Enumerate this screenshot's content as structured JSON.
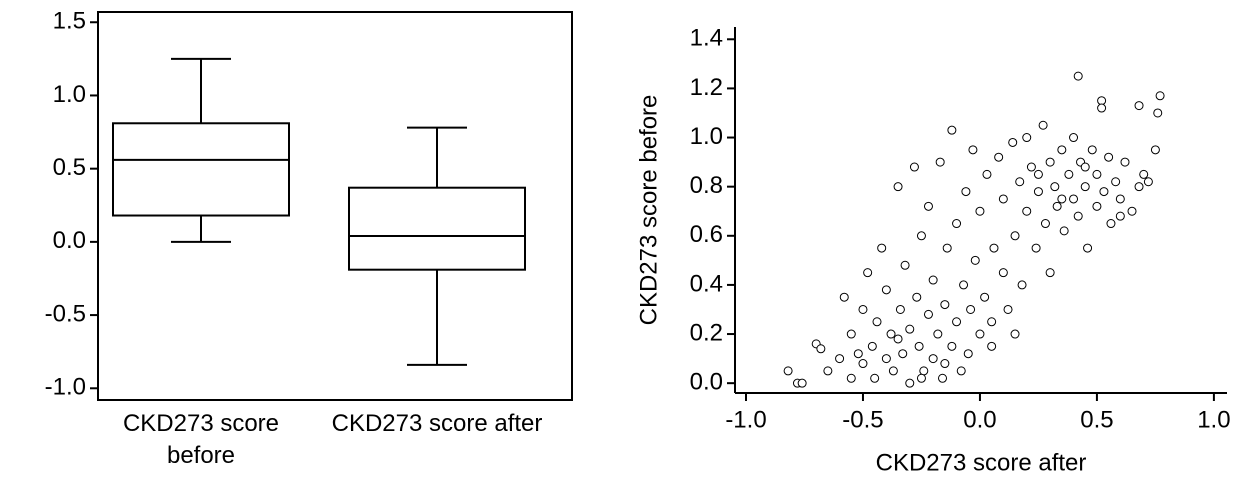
{
  "chart_data": [
    {
      "type": "box",
      "categories": [
        "CKD273 score before",
        "CKD273 score after"
      ],
      "whisker_low": [
        0.0,
        -0.84
      ],
      "q1": [
        0.18,
        -0.19
      ],
      "median": [
        0.56,
        0.04
      ],
      "q3": [
        0.81,
        0.37
      ],
      "whisker_high": [
        1.25,
        0.78
      ],
      "color": "#000000",
      "ylim": [
        -1.08,
        1.57
      ],
      "yticks": [
        {
          "value": -1,
          "label": "-1.0"
        },
        -0.5,
        {
          "value": 0,
          "label": "0.0"
        },
        0.5,
        {
          "value": 1,
          "label": "1.0"
        },
        1.5
      ]
    },
    {
      "type": "scatter",
      "xlabel": "CKD273 score after",
      "ylabel": "CKD273 score before",
      "x": [
        -0.82,
        -0.78,
        -0.76,
        -0.7,
        -0.68,
        -0.65,
        -0.6,
        -0.58,
        -0.55,
        -0.55,
        -0.52,
        -0.5,
        -0.5,
        -0.48,
        -0.46,
        -0.45,
        -0.44,
        -0.42,
        -0.4,
        -0.4,
        -0.38,
        -0.37,
        -0.35,
        -0.34,
        -0.33,
        -0.32,
        -0.3,
        -0.3,
        -0.28,
        -0.27,
        -0.26,
        -0.25,
        -0.24,
        -0.22,
        -0.22,
        -0.2,
        -0.2,
        -0.18,
        -0.17,
        -0.16,
        -0.15,
        -0.14,
        -0.12,
        -0.12,
        -0.1,
        -0.1,
        -0.08,
        -0.07,
        -0.06,
        -0.05,
        -0.04,
        -0.03,
        -0.02,
        0.0,
        0.0,
        0.02,
        0.03,
        0.05,
        0.06,
        0.08,
        0.1,
        0.1,
        0.12,
        0.14,
        0.15,
        0.17,
        0.18,
        0.2,
        0.2,
        0.22,
        0.24,
        0.25,
        0.27,
        0.28,
        0.3,
        0.3,
        0.32,
        0.33,
        0.35,
        0.36,
        0.38,
        0.4,
        0.4,
        0.42,
        0.43,
        0.45,
        0.46,
        0.48,
        0.5,
        0.5,
        0.52,
        0.53,
        0.55,
        0.56,
        0.58,
        0.6,
        0.62,
        0.65,
        0.68,
        0.7,
        0.72,
        0.75,
        0.77,
        0.42,
        0.52,
        -0.35,
        -0.15,
        0.05,
        -0.25,
        0.15,
        0.76,
        0.68,
        0.6,
        0.35,
        0.25,
        0.45
      ],
      "values": [
        0.05,
        0.0,
        0.0,
        0.16,
        0.14,
        0.05,
        0.1,
        0.35,
        0.2,
        0.02,
        0.12,
        0.08,
        0.3,
        0.45,
        0.15,
        0.02,
        0.25,
        0.55,
        0.1,
        0.38,
        0.2,
        0.05,
        0.8,
        0.3,
        0.12,
        0.48,
        0.22,
        0.0,
        0.88,
        0.35,
        0.15,
        0.6,
        0.05,
        0.28,
        0.72,
        0.1,
        0.42,
        0.2,
        0.9,
        0.02,
        0.32,
        0.55,
        0.15,
        1.03,
        0.25,
        0.65,
        0.05,
        0.4,
        0.78,
        0.12,
        0.3,
        0.95,
        0.5,
        0.2,
        0.7,
        0.35,
        0.85,
        0.15,
        0.55,
        0.92,
        0.45,
        0.75,
        0.3,
        0.98,
        0.6,
        0.82,
        0.4,
        0.7,
        1.0,
        0.88,
        0.55,
        0.78,
        1.05,
        0.65,
        0.9,
        0.45,
        0.8,
        0.72,
        0.95,
        0.62,
        0.85,
        0.75,
        1.0,
        0.68,
        0.9,
        0.8,
        0.55,
        0.95,
        0.72,
        0.85,
        1.15,
        0.78,
        0.92,
        0.65,
        0.82,
        0.75,
        0.9,
        0.7,
        0.8,
        0.85,
        0.82,
        0.95,
        1.17,
        1.25,
        1.12,
        0.18,
        0.08,
        0.25,
        0.02,
        0.2,
        1.1,
        1.13,
        0.68,
        0.75,
        0.85,
        0.88
      ],
      "color": "#000000",
      "xlim": [
        -1.047,
        1.056
      ],
      "ylim": [
        -0.04,
        1.45
      ],
      "xticks": [
        {
          "value": -1,
          "label": "-1.0"
        },
        -0.5,
        {
          "value": 0,
          "label": "0.0"
        },
        0.5,
        {
          "value": 1,
          "label": "1.0"
        }
      ],
      "yticks": [
        {
          "value": 0,
          "label": "0.0"
        },
        0.2,
        0.4,
        0.6,
        0.8,
        {
          "value": 1,
          "label": "1.0"
        },
        1.2,
        1.4
      ]
    }
  ]
}
